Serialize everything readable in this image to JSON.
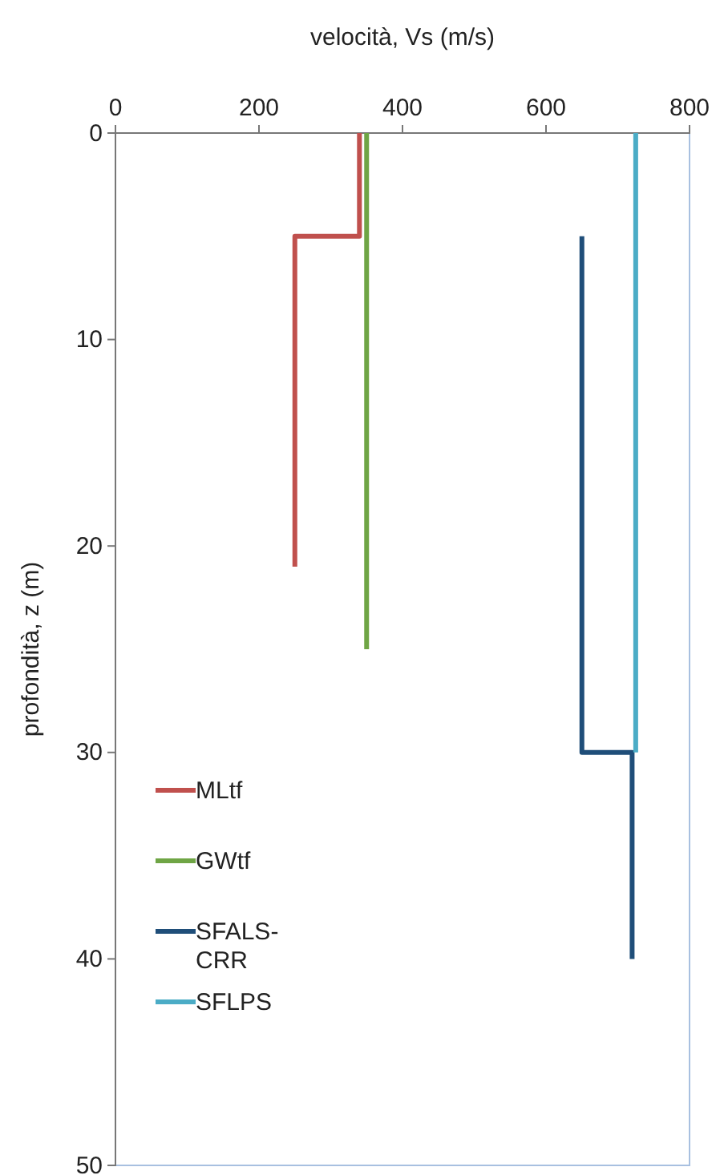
{
  "chart_data": {
    "type": "line",
    "xlabel": "velocità, Vs (m/s)",
    "ylabel": "profondità, z (m)",
    "xlim": [
      0,
      800
    ],
    "xticks": [
      0,
      200,
      400,
      600,
      800
    ],
    "ylim": [
      50,
      0
    ],
    "yticks": [
      0,
      10,
      20,
      30,
      40,
      50
    ],
    "grid": false,
    "legend": "left",
    "marker": "none",
    "line_style": "solid",
    "series": [
      {
        "name": "MLtf",
        "color": "#c0504d",
        "x": [
          340,
          340,
          250,
          250
        ],
        "values": [
          0,
          5,
          5,
          21
        ]
      },
      {
        "name": "GWtf",
        "color": "#6fa545",
        "x": [
          350,
          350
        ],
        "values": [
          0,
          25
        ]
      },
      {
        "name": "SFALS-CRR",
        "color": "#1f4e79",
        "x": [
          650,
          650,
          720,
          720
        ],
        "values": [
          5,
          30,
          30,
          40
        ]
      },
      {
        "name": "SFLPS",
        "color": "#4bacc6",
        "x": [
          725,
          725
        ],
        "values": [
          0,
          30
        ]
      }
    ]
  }
}
